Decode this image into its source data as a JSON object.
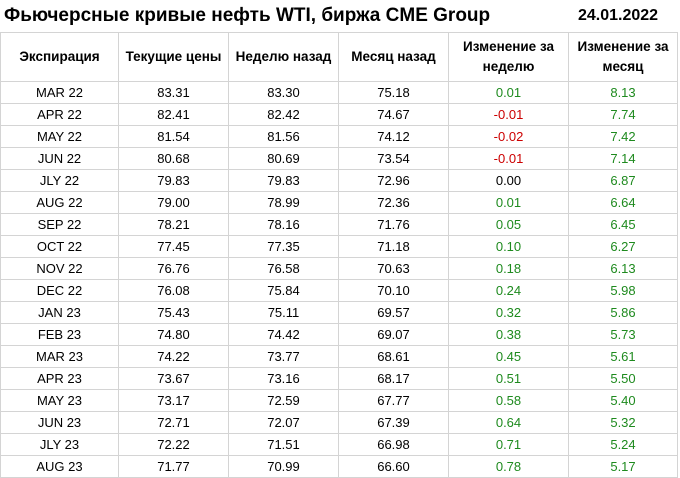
{
  "header": {
    "title": "Фьючерсные кривые нефть WTI, биржа CME Group",
    "date": "24.01.2022"
  },
  "columns": [
    "Экспирация",
    "Текущие цены",
    "Неделю назад",
    "Месяц назад",
    "Изменение за неделю",
    "Изменение за месяц"
  ],
  "colors": {
    "positive": "#1e8a1e",
    "negative": "#cc0000",
    "grid": "#d4d4d4"
  },
  "rows": [
    [
      "MAR 22",
      "83.31",
      "83.30",
      "75.18",
      "0.01",
      "8.13"
    ],
    [
      "APR 22",
      "82.41",
      "82.42",
      "74.67",
      "-0.01",
      "7.74"
    ],
    [
      "MAY 22",
      "81.54",
      "81.56",
      "74.12",
      "-0.02",
      "7.42"
    ],
    [
      "JUN 22",
      "80.68",
      "80.69",
      "73.54",
      "-0.01",
      "7.14"
    ],
    [
      "JLY 22",
      "79.83",
      "79.83",
      "72.96",
      "0.00",
      "6.87"
    ],
    [
      "AUG 22",
      "79.00",
      "78.99",
      "72.36",
      "0.01",
      "6.64"
    ],
    [
      "SEP 22",
      "78.21",
      "78.16",
      "71.76",
      "0.05",
      "6.45"
    ],
    [
      "OCT 22",
      "77.45",
      "77.35",
      "71.18",
      "0.10",
      "6.27"
    ],
    [
      "NOV 22",
      "76.76",
      "76.58",
      "70.63",
      "0.18",
      "6.13"
    ],
    [
      "DEC 22",
      "76.08",
      "75.84",
      "70.10",
      "0.24",
      "5.98"
    ],
    [
      "JAN 23",
      "75.43",
      "75.11",
      "69.57",
      "0.32",
      "5.86"
    ],
    [
      "FEB 23",
      "74.80",
      "74.42",
      "69.07",
      "0.38",
      "5.73"
    ],
    [
      "MAR 23",
      "74.22",
      "73.77",
      "68.61",
      "0.45",
      "5.61"
    ],
    [
      "APR 23",
      "73.67",
      "73.16",
      "68.17",
      "0.51",
      "5.50"
    ],
    [
      "MAY 23",
      "73.17",
      "72.59",
      "67.77",
      "0.58",
      "5.40"
    ],
    [
      "JUN 23",
      "72.71",
      "72.07",
      "67.39",
      "0.64",
      "5.32"
    ],
    [
      "JLY 23",
      "72.22",
      "71.51",
      "66.98",
      "0.71",
      "5.24"
    ],
    [
      "AUG 23",
      "71.77",
      "70.99",
      "66.60",
      "0.78",
      "5.17"
    ]
  ]
}
